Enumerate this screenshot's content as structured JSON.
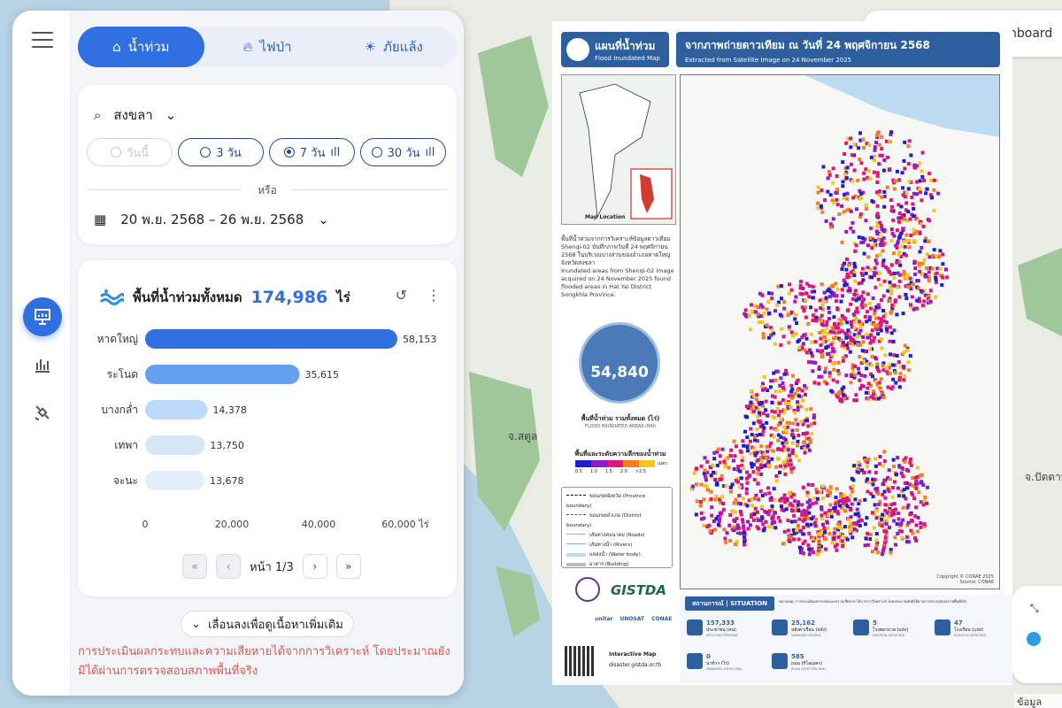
{
  "tabs": [
    {
      "label": "น้ำท่วม",
      "icon": "flood-icon",
      "active": true
    },
    {
      "label": "ไฟป่า",
      "icon": "fire-icon",
      "active": false
    },
    {
      "label": "ภัยแล้ง",
      "icon": "drought-icon",
      "active": false
    }
  ],
  "filter": {
    "province": "สงขลา",
    "periods": [
      {
        "label": "วันนี้",
        "disabled": true,
        "selected": false,
        "bars": false
      },
      {
        "label": "3 วัน",
        "disabled": false,
        "selected": false,
        "bars": false
      },
      {
        "label": "7 วัน",
        "disabled": false,
        "selected": true,
        "bars": true
      },
      {
        "label": "30 วัน",
        "disabled": false,
        "selected": false,
        "bars": true
      }
    ],
    "or_label": "หรือ",
    "date_range": "20 พ.ย. 2568 – 26 พ.ย. 2568"
  },
  "summary": {
    "title": "พื้นที่น้ำท่วมทั้งหมด",
    "total": "174,986",
    "unit": "ไร่"
  },
  "chart_data": {
    "type": "bar",
    "orientation": "horizontal",
    "categories": [
      "หาดใหญ่",
      "ระโนด",
      "บางกล่ำ",
      "เทพา",
      "จะนะ"
    ],
    "values": [
      58153,
      35615,
      14378,
      13750,
      13678
    ],
    "value_labels": [
      "58,153",
      "35,615",
      "14,378",
      "13,750",
      "13,678"
    ],
    "bar_colors": [
      "#2f6fe0",
      "#62a1ef",
      "#bcd9f7",
      "#d5e6f8",
      "#e3eefa"
    ],
    "xlim": [
      0,
      60000
    ],
    "xticks": [
      "0",
      "20,000",
      "40,000",
      "60,000 ไร่"
    ]
  },
  "pager": {
    "label": "หน้า 1/3"
  },
  "more_button": "เลื่อนลงเพื่อดูเนื้อหาเพิ่มเติม",
  "disclaimer": "การประเมินผลกระทบและความเสียหายได้จากการวิเคราะห์ โดยประมาณยังมิได้ผ่านการตรวจสอบสภาพพื้นที่จริง",
  "map_labels": {
    "satun": "จ.สตูล",
    "pattani": "จ.ปัตตานี"
  },
  "poster": {
    "logo_th": "แผนที่น้ำท่วม",
    "logo_en": "Flood Inundated Map",
    "title_th": "จากภาพถ่ายดาวเทียม ณ วันที่ 24 พฤศจิกายน 2568",
    "title_en": "Extracted from Satellite Image on 24 November 2025",
    "location_caption": "Map Location",
    "desc_th": "พื้นที่น้ำท่วมจากการวิเคราะห์ข้อมูลดาวเทียม Shenqi-02 บันทึกภาพวันที่ 24 พฤศจิกายน 2568 ในบริเวณบางส่วนของอำเภอหาดใหญ่ จังหวัดสงขลา",
    "desc_en": "Inundated areas from Shenqi-02 image acquired on 24 November 2025 found flooded areas in Hat Yai District Songkhla Province.",
    "total_value": "54,840",
    "total_caption": "พื้นที่น้ำท่วม รวมทั้งหมด (ไร่)",
    "total_caption_en": "FLOOD INUNDATED AREAS (RAI)",
    "depth_title": "พื้นที่และระดับความลึกของน้ำท่วม",
    "depth_labels": [
      "0.5",
      "1.0",
      "1.5",
      "2.0",
      ">2.5"
    ],
    "depth_unit": "เมตร",
    "legend": [
      "ขอบเขตจังหวัด (Province boundary)",
      "ขอบเขตอำเภอ (District boundary)",
      "เส้นทางคมนาคม (Roads)",
      "เส้นทางน้ำ (Rivers)",
      "แหล่งน้ำ (Water body)",
      "อาคาร (Building)"
    ],
    "copyright": "Copyright © CONAE 2025",
    "source": "Source: CONAE",
    "situation_label": "สถานการณ์ | SITUATION",
    "situation_note": "หมายเหตุ: การประเมินผลกระทบและความเสียหาย ได้จากการวิเคราะห์ โดยประมาณยังมิได้ผ่านการตรวจสอบสภาพพื้นที่จริง",
    "stats": [
      {
        "value": "157,333",
        "label": "ประชาชน (คน)",
        "label_en": "AFFECTED PERSONS"
      },
      {
        "value": "25,162",
        "label": "หลังคาเรือน (หลัง)",
        "label_en": "DAMAGED HOUSES"
      },
      {
        "value": "5",
        "label": "โรงพยาบาล (แห่ง)",
        "label_en": "HOSPITAL AFFECTED"
      },
      {
        "value": "47",
        "label": "โรงเรียน (แห่ง)",
        "label_en": "SCHOOLS AFFECTED"
      },
      {
        "value": "0",
        "label": "นาข้าว (ไร่)",
        "label_en": "DAMAGED CROPS (RAI)"
      },
      {
        "value": "585",
        "label": "ถนน (กิโลเมตร)",
        "label_en": "ROAD AFFECTED (KM)"
      }
    ],
    "org_logo": "GISTDA",
    "org_logos_small": [
      "unitar",
      "UNOSAT",
      "CONAE"
    ],
    "interactive_label": "Interactive Map",
    "interactive_url": "disaster.gistda.or.th",
    "colors": {
      "blue": "#1b1fd0",
      "magenta": "#e0147a",
      "orange": "#f57c1f",
      "yellow": "#f7c51e",
      "purple": "#8a1bd0"
    }
  },
  "right_panel": {
    "label": "hboard"
  },
  "attribution": "ข้อมูลแผนที่"
}
